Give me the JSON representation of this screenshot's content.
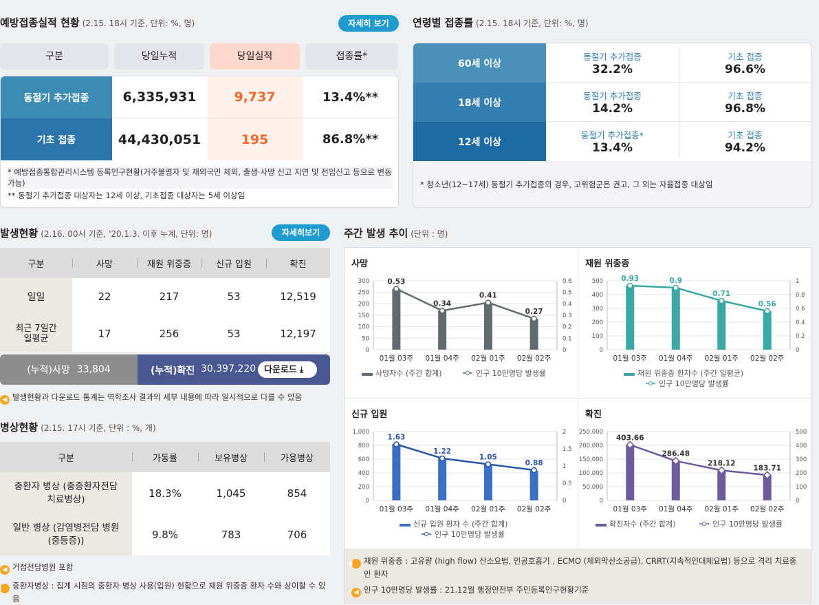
{
  "vacc": {
    "title": "예방접종실적 현황",
    "sub": "(2.15. 18시 기준, 단위: %, 명)",
    "detail": "자세히 보기",
    "headers": [
      "구분",
      "당일누적",
      "당일실적",
      "접종률*"
    ],
    "rows": [
      {
        "label": "동절기 추가접종",
        "cum": "6,335,931",
        "today": "9,737",
        "rate": "13.4%**"
      },
      {
        "label": "기초 접종",
        "cum": "44,430,051",
        "today": "195",
        "rate": "86.8%**"
      }
    ],
    "note1": "* 예방접종통합관리시스템 등록인구현황(거주불명자 및 재외국민 제외, 출생·사망 신고 지연 및 전입신고 등으로 변동 가능)",
    "note2": "** 동절기 추가접종 대상자는 12세 이상, 기초접종 대상자는 5세 이상임"
  },
  "age": {
    "title": "연령별 접종률",
    "sub": "(2.15. 18시 기준, 단위: %, 명)",
    "rows": [
      {
        "label": "60세 이상",
        "l1": "동절기 추가접종",
        "v1": "32.2%",
        "l2": "기초 접종",
        "v2": "96.6%"
      },
      {
        "label": "18세 이상",
        "l1": "동절기 추가접종",
        "v1": "14.2%",
        "l2": "기초 접종",
        "v2": "96.8%"
      },
      {
        "label": "12세 이상",
        "l1": "동절기 추가접종*",
        "v1": "13.4%",
        "l2": "기초 접종",
        "v2": "94.2%"
      }
    ],
    "note": "* 청소년(12~17세) 동절기 추가접종의 경우, 고위험군은 권고, 그 외는 자율접종 대상임"
  },
  "occur": {
    "title": "발생현황",
    "sub": "(2.16. 00시 기준, '20.1.3. 이후 누계, 단위: 명)",
    "detail": "자세히보기",
    "headers": [
      "구분",
      "사망",
      "재원 위중증",
      "신규 입원",
      "확진"
    ],
    "rows": [
      {
        "label": "일일",
        "c": [
          "22",
          "217",
          "53",
          "12,519"
        ]
      },
      {
        "label": "최근 7일간 일평균",
        "c": [
          "17",
          "256",
          "53",
          "12,197"
        ]
      }
    ],
    "cum_death_label": "(누적)사망",
    "cum_death": "33,804",
    "cum_conf_label": "(누적)확진",
    "cum_conf": "30,397,220",
    "download": "다운로드",
    "note": "발생현황과 다운로드 통계는 역학조사 결과의 세부 내용에 따라 일시적으로 다를 수 있음"
  },
  "bed": {
    "title": "병상현황",
    "sub": "(2.15. 17시 기준, 단위 : %, 개)",
    "headers": [
      "구분",
      "가동률",
      "보유병상",
      "가용병상"
    ],
    "rows": [
      {
        "label": "중환자 병상 (중증환자전담 치료병상)",
        "c": [
          "18.3%",
          "1,045",
          "854"
        ]
      },
      {
        "label": "일반 병상 (감염병전담 병원(중등증))",
        "c": [
          "9.8%",
          "783",
          "706"
        ]
      }
    ],
    "note1": "거점전담병원 포함",
    "note2": "중환자병상 : 집계 시점의 중환자 병상 사용(입원) 현황으로 재원 위중증 환자 수와 상이할 수 있음"
  },
  "weekly": {
    "title": "주간 발생 추이",
    "sub": "(단위 : 명)",
    "note1": "재원 위중증 : 고유량 (high flow) 산소요법, 인공호흡기 , ECMO (체외막산소공급), CRRT(지속적인대체요법) 등으로 격리 치료중인 환자",
    "note2": "인구 10만명당 발생률 : 21.12월 행정안전부 주민등록인구현황기준"
  },
  "chart_data": [
    {
      "type": "bar",
      "title": "사망",
      "categories": [
        "01월 03주",
        "01월 04주",
        "02월 01주",
        "02월 02주"
      ],
      "series": [
        {
          "name": "사망자수 (주간 합계)",
          "values": [
            265,
            170,
            205,
            135
          ]
        },
        {
          "name": "인구 10만명당 발생률",
          "values": [
            0.53,
            0.34,
            0.41,
            0.27
          ]
        }
      ],
      "ylim": [
        0,
        300
      ],
      "y2lim": [
        0,
        0.6
      ],
      "yticks": [
        "0",
        "50",
        "100",
        "150",
        "200",
        "250",
        "300"
      ],
      "y2ticks": [
        "0",
        "0.1",
        "0.2",
        "0.3",
        "0.4",
        "0.5",
        "0.6"
      ],
      "color": "#5f6b6e",
      "line": "#5f6b6e",
      "labels": [
        "0.53",
        "0.34",
        "0.41",
        "0.27"
      ]
    },
    {
      "type": "bar",
      "title": "재원 위중증",
      "categories": [
        "01월 03주",
        "01월 04주",
        "02월 01주",
        "02월 02주"
      ],
      "series": [
        {
          "name": "재원 위중증 환자수 (주간 일평균)",
          "values": [
            467,
            450,
            355,
            280
          ]
        },
        {
          "name": "인구 10만명당 발생률",
          "values": [
            0.93,
            0.9,
            0.71,
            0.56
          ]
        }
      ],
      "ylim": [
        0,
        500
      ],
      "y2lim": [
        0,
        1
      ],
      "yticks": [
        "0",
        "100",
        "200",
        "300",
        "400",
        "500"
      ],
      "y2ticks": [
        "0",
        "0.2",
        "0.4",
        "0.6",
        "0.8",
        "1"
      ],
      "color": "#3aa8a4",
      "line": "#3aa8a4",
      "labels": [
        "0.93",
        "0.9",
        "0.71",
        "0.56"
      ]
    },
    {
      "type": "bar",
      "title": "신규 입원",
      "categories": [
        "01월 03주",
        "01월 04주",
        "02월 01주",
        "02월 02주"
      ],
      "series": [
        {
          "name": "신규 입원 환자 수 (주간 합계)",
          "values": [
            820,
            610,
            520,
            430
          ]
        },
        {
          "name": "인구 10만명당 발생률",
          "values": [
            1.63,
            1.22,
            1.05,
            0.88
          ]
        }
      ],
      "ylim": [
        0,
        1000
      ],
      "y2lim": [
        0,
        2
      ],
      "yticks": [
        "0",
        "200",
        "400",
        "600",
        "800",
        "1,000"
      ],
      "y2ticks": [
        "0",
        "0.5",
        "1",
        "1.5",
        "2"
      ],
      "color": "#3a6fc4",
      "line": "#2a56a8",
      "labels": [
        "1.63",
        "1.22",
        "1.05",
        "0.88"
      ]
    },
    {
      "type": "bar",
      "title": "확진",
      "categories": [
        "01월 03주",
        "01월 04주",
        "02월 01주",
        "02월 02주"
      ],
      "series": [
        {
          "name": "확진자수 (주간 합계)",
          "values": [
            203000,
            144000,
            110000,
            92000
          ]
        },
        {
          "name": "인구 10만명당 발생률",
          "values": [
            403.66,
            286.48,
            218.12,
            183.71
          ]
        }
      ],
      "ylim": [
        0,
        250000
      ],
      "y2lim": [
        0,
        500
      ],
      "yticks": [
        "0",
        "50,000",
        "100,000",
        "150,000",
        "200,000",
        "250,000"
      ],
      "y2ticks": [
        "0",
        "100",
        "200",
        "300",
        "400",
        "500"
      ],
      "color": "#6d5b9c",
      "line": "#6d5b9c",
      "labels": [
        "403.66",
        "286.48",
        "218.12",
        "183.71"
      ]
    }
  ]
}
